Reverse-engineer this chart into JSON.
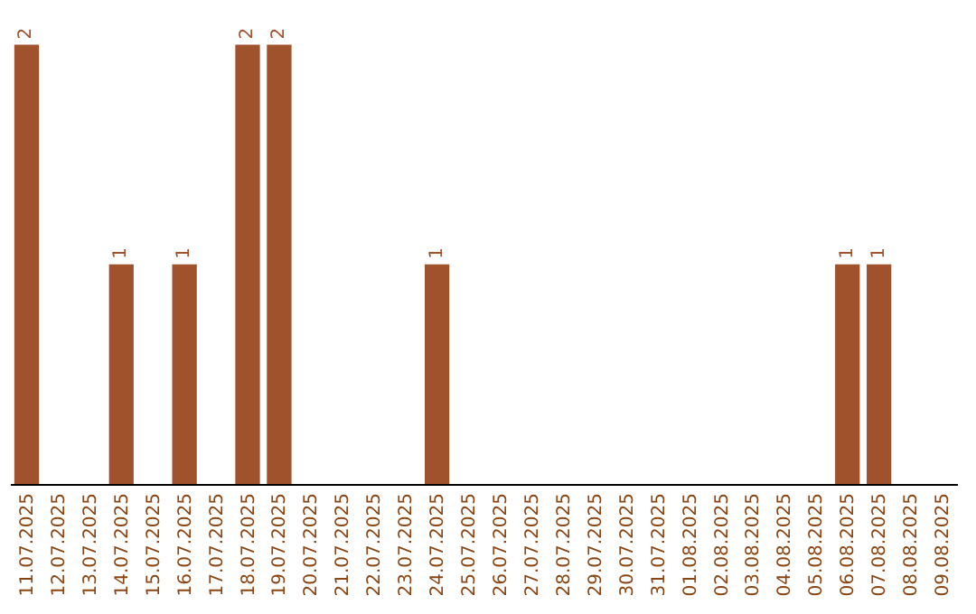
{
  "chart_data": {
    "type": "bar",
    "color": "#a0522d",
    "categories": [
      "11.07.2025",
      "12.07.2025",
      "13.07.2025",
      "14.07.2025",
      "15.07.2025",
      "16.07.2025",
      "17.07.2025",
      "18.07.2025",
      "19.07.2025",
      "20.07.2025",
      "21.07.2025",
      "22.07.2025",
      "23.07.2025",
      "24.07.2025",
      "25.07.2025",
      "26.07.2025",
      "27.07.2025",
      "28.07.2025",
      "29.07.2025",
      "30.07.2025",
      "31.07.2025",
      "01.08.2025",
      "02.08.2025",
      "03.08.2025",
      "04.08.2025",
      "05.08.2025",
      "06.08.2025",
      "07.08.2025",
      "08.08.2025",
      "09.08.2025"
    ],
    "values": [
      2,
      0,
      0,
      1,
      0,
      1,
      0,
      2,
      2,
      0,
      0,
      0,
      0,
      1,
      0,
      0,
      0,
      0,
      0,
      0,
      0,
      0,
      0,
      0,
      0,
      0,
      1,
      1,
      0,
      0
    ],
    "value_labels": [
      "2",
      null,
      null,
      "1",
      null,
      "1",
      null,
      "2",
      "2",
      null,
      null,
      null,
      null,
      "1",
      null,
      null,
      null,
      null,
      null,
      null,
      null,
      null,
      null,
      null,
      null,
      null,
      "1",
      "1",
      null,
      null
    ],
    "tick_labels": "x"
  }
}
